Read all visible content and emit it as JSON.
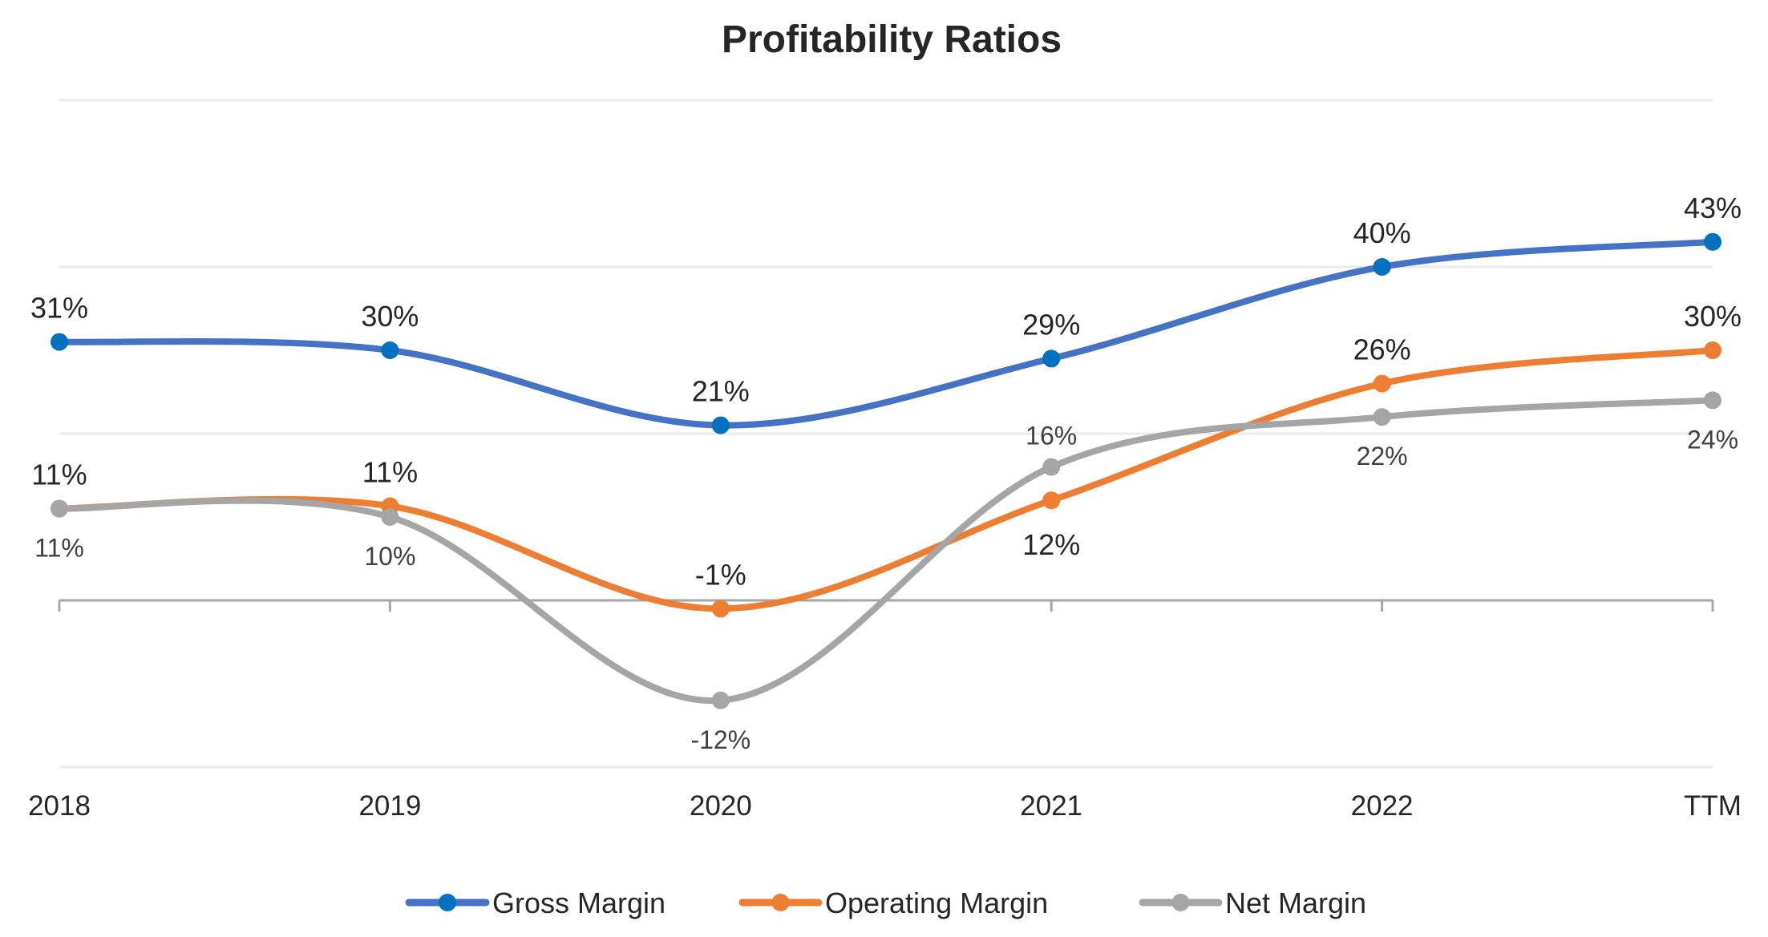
{
  "chart_data": {
    "type": "line",
    "title": "Profitability Ratios",
    "xlabel": "",
    "ylabel": "",
    "categories": [
      "2018",
      "2019",
      "2020",
      "2021",
      "2022",
      "TTM"
    ],
    "ylim": [
      -20,
      60
    ],
    "yticks": [
      -20,
      0,
      20,
      40,
      60
    ],
    "y_unit": "%",
    "grid": true,
    "smooth": true,
    "legend_position": "bottom",
    "series": [
      {
        "name": "Gross Margin",
        "line_color": "#4472C4",
        "marker_color": "#0070C0",
        "values": [
          31,
          30,
          21,
          29,
          40,
          43
        ],
        "labels": [
          "31%",
          "30%",
          "21%",
          "29%",
          "40%",
          "43%"
        ],
        "label_placement": [
          "above",
          "above",
          "above",
          "above",
          "above",
          "above"
        ],
        "label_style": "primary"
      },
      {
        "name": "Operating Margin",
        "line_color": "#ED7D31",
        "marker_color": "#ED7D31",
        "values": [
          11,
          11.3,
          -1,
          12,
          26,
          30
        ],
        "labels": [
          "11%",
          "11%",
          "-1%",
          "12%",
          "26%",
          "30%"
        ],
        "label_placement": [
          "above",
          "above",
          "above",
          "below",
          "above",
          "above"
        ],
        "label_style": "primary"
      },
      {
        "name": "Net Margin",
        "line_color": "#A5A5A5",
        "marker_color": "#A5A5A5",
        "values": [
          11,
          10,
          -12,
          16,
          22,
          24
        ],
        "labels": [
          "11%",
          "10%",
          "-12%",
          "16%",
          "22%",
          "24%"
        ],
        "label_placement": [
          "below",
          "below",
          "below",
          "above",
          "below",
          "below"
        ],
        "label_style": "net"
      }
    ]
  }
}
